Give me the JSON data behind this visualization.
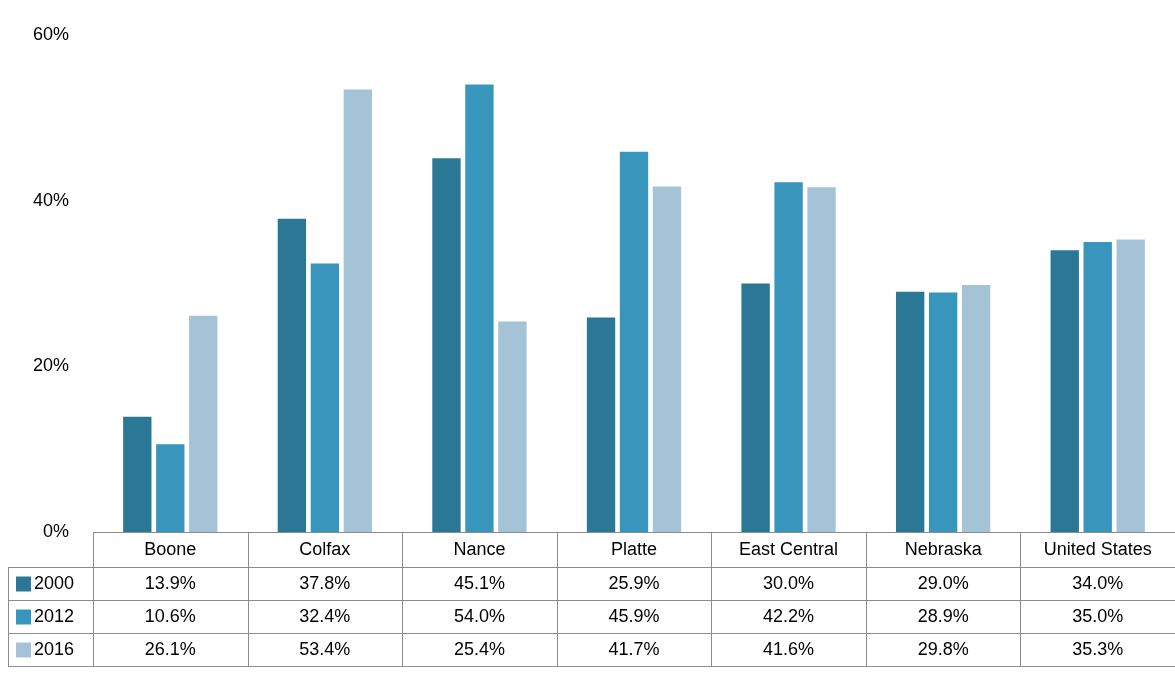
{
  "chart_data": {
    "type": "bar",
    "categories": [
      "Boone",
      "Colfax",
      "Nance",
      "Platte",
      "East Central",
      "Nebraska",
      "United States"
    ],
    "series": [
      {
        "name": "2000",
        "color": "#2a7896",
        "values": [
          13.9,
          37.8,
          45.1,
          25.9,
          30.0,
          29.0,
          34.0
        ],
        "value_labels": [
          "13.9%",
          "37.8%",
          "45.1%",
          "25.9%",
          "30.0%",
          "29.0%",
          "34.0%"
        ]
      },
      {
        "name": "2012",
        "color": "#3896bd",
        "values": [
          10.6,
          32.4,
          54.0,
          45.9,
          42.2,
          28.9,
          35.0
        ],
        "value_labels": [
          "10.6%",
          "32.4%",
          "54.0%",
          "45.9%",
          "42.2%",
          "28.9%",
          "35.0%"
        ]
      },
      {
        "name": "2016",
        "color": "#a5c3d6",
        "values": [
          26.1,
          53.4,
          25.4,
          41.7,
          41.6,
          29.8,
          35.3
        ],
        "value_labels": [
          "26.1%",
          "53.4%",
          "25.4%",
          "41.7%",
          "41.6%",
          "29.8%",
          "35.3%"
        ]
      }
    ],
    "ylim": [
      0,
      60
    ],
    "yticks": [
      {
        "value": 0,
        "label": "0%"
      },
      {
        "value": 20,
        "label": "20%"
      },
      {
        "value": 40,
        "label": "40%"
      },
      {
        "value": 60,
        "label": "60%"
      }
    ],
    "grid": false,
    "legend": "bottom"
  }
}
